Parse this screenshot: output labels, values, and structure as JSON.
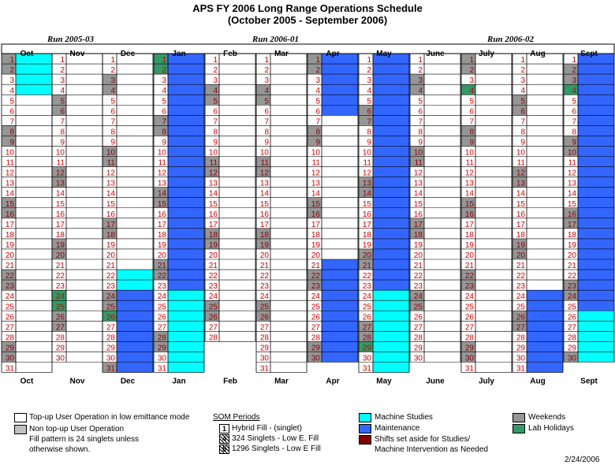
{
  "title_line1": "APS FY 2006 Long Range Operations Schedule",
  "title_line2": "(October 2005 - September 2006)",
  "runs": [
    "Run 2005-03",
    "Run 2006-01",
    "Run 2006-02"
  ],
  "months": [
    "Oct",
    "Nov",
    "Dec",
    "Jan",
    "Feb",
    "Mar",
    "Apr",
    "May",
    "June",
    "July",
    "Aug",
    "Sept"
  ],
  "days_in_month": [
    31,
    30,
    31,
    31,
    28,
    31,
    30,
    31,
    30,
    31,
    31,
    30
  ],
  "colors": {
    "user": "#ffffff",
    "non_topup": "#c0c0c0",
    "studies": "#00ffff",
    "maintenance": "#3366ff",
    "shifts_aside": "#800000",
    "weekend": "#969696",
    "holiday": "#339966",
    "day_text": "#cc0000"
  },
  "legend": {
    "user_op": "Top-up User Operation in low emittance mode",
    "non_topup": "Non top-up User Operation",
    "fill_note1": "Fill pattern is 24 singlets unless",
    "fill_note2": "otherwise shown.",
    "som_title": "SOM Periods",
    "som": [
      {
        "num": "1",
        "label": "Hybrid Fill - (singlet)"
      },
      {
        "num": "4",
        "label": "324 Singlets - Low E. Fill"
      },
      {
        "num": "5",
        "label": "1296 Singlets - Low E Fill"
      }
    ],
    "studies": "Machine Studies",
    "maintenance": "Maintenance",
    "shifts1": "Shifts set aside for Studies/",
    "shifts2": "Machine Intervention as Needed",
    "weekends": "Weekends",
    "holidays": "Lab Holidays"
  },
  "date": "2/24/2006"
}
